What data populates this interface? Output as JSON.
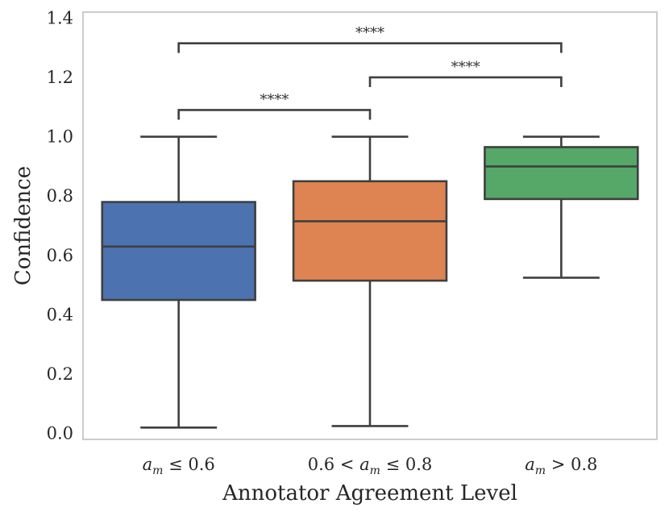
{
  "chart_data": {
    "type": "box",
    "xlabel": "Annotator Agreement Level",
    "ylabel": "Confidence",
    "ylim": [
      -0.02,
      1.42
    ],
    "yticks": [
      0.0,
      0.2,
      0.4,
      0.6,
      0.8,
      1.0,
      1.2,
      1.4
    ],
    "ytick_labels": [
      "0.0",
      "0.2",
      "0.4",
      "0.6",
      "0.8",
      "1.0",
      "1.2",
      "1.4"
    ],
    "grid": false,
    "categories": [
      {
        "parts": [
          {
            "t": "a",
            "it": true
          },
          {
            "t": "m",
            "it": true,
            "sub": true
          },
          {
            "t": " ≤ 0.6"
          }
        ]
      },
      {
        "parts": [
          {
            "t": "0.6 < "
          },
          {
            "t": "a",
            "it": true
          },
          {
            "t": "m",
            "it": true,
            "sub": true
          },
          {
            "t": " ≤ 0.8"
          }
        ]
      },
      {
        "parts": [
          {
            "t": "a",
            "it": true
          },
          {
            "t": "m",
            "it": true,
            "sub": true
          },
          {
            "t": " > 0.8"
          }
        ]
      }
    ],
    "boxes": [
      {
        "whislo": 0.02,
        "q1": 0.45,
        "med": 0.63,
        "q3": 0.78,
        "whishi": 1.0,
        "color": "#4C72B0"
      },
      {
        "whislo": 0.025,
        "q1": 0.515,
        "med": 0.715,
        "q3": 0.85,
        "whishi": 1.0,
        "color": "#DD8452"
      },
      {
        "whislo": 0.525,
        "q1": 0.79,
        "med": 0.9,
        "q3": 0.965,
        "whishi": 1.0,
        "color": "#55A868"
      }
    ],
    "significance": [
      {
        "from": 0,
        "to": 1,
        "y": 1.09,
        "label": "****"
      },
      {
        "from": 1,
        "to": 2,
        "y": 1.2,
        "label": "****"
      },
      {
        "from": 0,
        "to": 2,
        "y": 1.315,
        "label": "****"
      }
    ]
  },
  "colors": {
    "line": "#3f3f3f",
    "frame": "#cccccc"
  }
}
